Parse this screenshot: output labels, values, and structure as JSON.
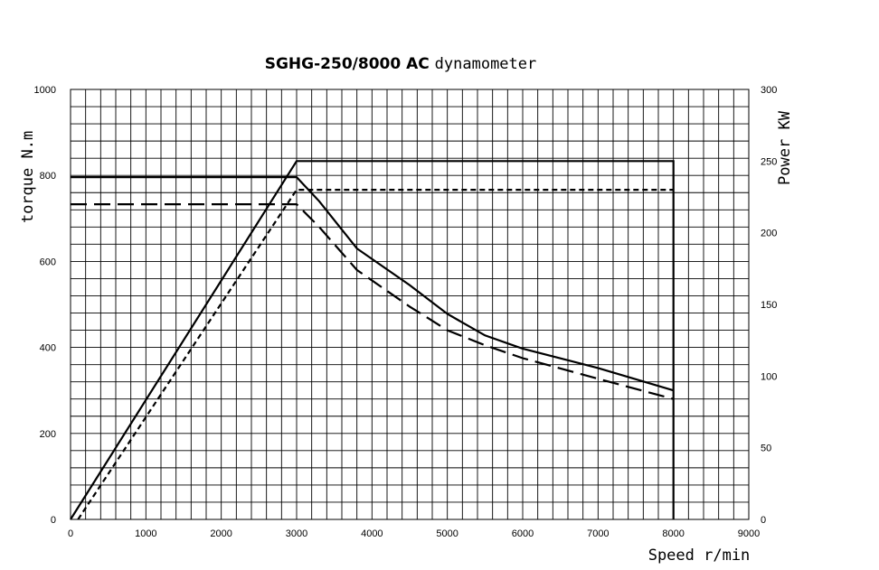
{
  "chart_data": {
    "type": "line",
    "title": "SGHG-250/8000 AC",
    "title_suffix": "dynamometer",
    "xlabel": "Speed r/min",
    "ylabel": "torque N.m",
    "y2label": "Power KW",
    "xlim": [
      0,
      9000
    ],
    "ylim": [
      0,
      1000
    ],
    "y2lim": [
      0,
      300
    ],
    "grid": true,
    "xticks": [
      "0",
      "1000",
      "2000",
      "3000",
      "4000",
      "5000",
      "6000",
      "7000",
      "8000",
      "9000"
    ],
    "yticks": [
      "0",
      "200",
      "400",
      "600",
      "800",
      "1000"
    ],
    "y2ticks": [
      "0",
      "50",
      "100",
      "150",
      "200",
      "250",
      "300"
    ],
    "series": [
      {
        "style": "solid",
        "axis": "left",
        "x": [
          0,
          3000,
          3300,
          3800,
          4500,
          5000,
          5500,
          6000,
          7000,
          8000
        ],
        "y": [
          796,
          796,
          740,
          630,
          545,
          478,
          428,
          397,
          352,
          300
        ]
      },
      {
        "style": "dashed",
        "axis": "left",
        "x": [
          0,
          3000,
          3300,
          3800,
          4500,
          5000,
          5500,
          6000,
          7000,
          8000
        ],
        "y": [
          733,
          733,
          680,
          580,
          495,
          440,
          405,
          375,
          327,
          280
        ]
      },
      {
        "style": "solid",
        "axis": "right",
        "x": [
          0,
          3000,
          8000,
          8000
        ],
        "y": [
          0,
          250,
          250,
          0
        ]
      },
      {
        "style": "dotted",
        "axis": "right",
        "x": [
          100,
          3000,
          8000
        ],
        "y": [
          0,
          230,
          230
        ]
      }
    ]
  }
}
